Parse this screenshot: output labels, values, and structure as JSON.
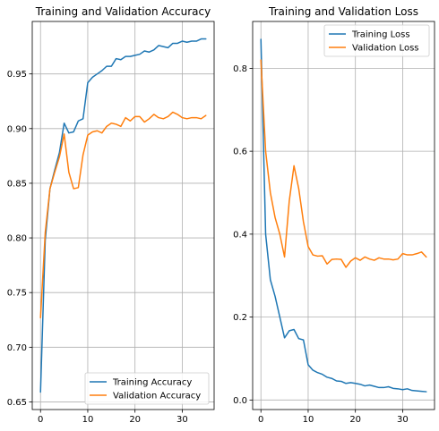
{
  "chart_data": [
    {
      "type": "line",
      "title": "Training and Validation Accuracy",
      "xlabel": "",
      "ylabel": "",
      "xlim": [
        -1.75,
        36.75
      ],
      "ylim": [
        0.643,
        0.998
      ],
      "xticks": [
        0,
        10,
        20,
        30
      ],
      "yticks": [
        0.65,
        0.7,
        0.75,
        0.8,
        0.85,
        0.9,
        0.95
      ],
      "ytick_labels": [
        "0.65",
        "0.70",
        "0.75",
        "0.80",
        "0.85",
        "0.90",
        "0.95"
      ],
      "grid": true,
      "legend_position": "lower-right",
      "x": [
        0,
        1,
        2,
        3,
        4,
        5,
        6,
        7,
        8,
        9,
        10,
        11,
        12,
        13,
        14,
        15,
        16,
        17,
        18,
        19,
        20,
        21,
        22,
        23,
        24,
        25,
        26,
        27,
        28,
        29,
        30,
        31,
        32,
        33,
        34,
        35
      ],
      "series": [
        {
          "name": "Training Accuracy",
          "color": "#1f77b4",
          "values": [
            0.659,
            0.798,
            0.845,
            0.862,
            0.878,
            0.905,
            0.896,
            0.897,
            0.907,
            0.909,
            0.942,
            0.947,
            0.95,
            0.953,
            0.957,
            0.957,
            0.964,
            0.963,
            0.966,
            0.966,
            0.967,
            0.968,
            0.971,
            0.97,
            0.972,
            0.976,
            0.975,
            0.974,
            0.978,
            0.978,
            0.98,
            0.979,
            0.98,
            0.98,
            0.982,
            0.982
          ]
        },
        {
          "name": "Validation Accuracy",
          "color": "#ff7f0e",
          "values": [
            0.727,
            0.805,
            0.845,
            0.86,
            0.874,
            0.895,
            0.86,
            0.845,
            0.846,
            0.876,
            0.894,
            0.897,
            0.898,
            0.896,
            0.902,
            0.905,
            0.904,
            0.902,
            0.91,
            0.907,
            0.911,
            0.911,
            0.906,
            0.909,
            0.913,
            0.91,
            0.909,
            0.911,
            0.915,
            0.913,
            0.91,
            0.909,
            0.91,
            0.91,
            0.909,
            0.912
          ]
        }
      ]
    },
    {
      "type": "line",
      "title": "Training and Validation Loss",
      "xlabel": "",
      "ylabel": "",
      "xlim": [
        -1.75,
        36.75
      ],
      "ylim": [
        -0.023,
        0.913
      ],
      "xticks": [
        0,
        10,
        20,
        30
      ],
      "yticks": [
        0.0,
        0.2,
        0.4,
        0.6,
        0.8
      ],
      "ytick_labels": [
        "0.0",
        "0.2",
        "0.4",
        "0.6",
        "0.8"
      ],
      "grid": true,
      "legend_position": "upper-right",
      "x": [
        0,
        1,
        2,
        3,
        4,
        5,
        6,
        7,
        8,
        9,
        10,
        11,
        12,
        13,
        14,
        15,
        16,
        17,
        18,
        19,
        20,
        21,
        22,
        23,
        24,
        25,
        26,
        27,
        28,
        29,
        30,
        31,
        32,
        33,
        34,
        35
      ],
      "series": [
        {
          "name": "Training Loss",
          "color": "#1f77b4",
          "values": [
            0.87,
            0.4,
            0.29,
            0.25,
            0.2,
            0.15,
            0.167,
            0.17,
            0.148,
            0.145,
            0.085,
            0.072,
            0.066,
            0.062,
            0.055,
            0.052,
            0.046,
            0.045,
            0.04,
            0.042,
            0.04,
            0.038,
            0.034,
            0.036,
            0.033,
            0.03,
            0.03,
            0.032,
            0.028,
            0.027,
            0.025,
            0.027,
            0.023,
            0.022,
            0.021,
            0.02
          ]
        },
        {
          "name": "Validation Loss",
          "color": "#ff7f0e",
          "values": [
            0.82,
            0.6,
            0.5,
            0.44,
            0.4,
            0.345,
            0.48,
            0.565,
            0.51,
            0.43,
            0.37,
            0.35,
            0.347,
            0.348,
            0.328,
            0.339,
            0.34,
            0.339,
            0.32,
            0.335,
            0.343,
            0.337,
            0.345,
            0.34,
            0.337,
            0.343,
            0.34,
            0.34,
            0.338,
            0.34,
            0.353,
            0.35,
            0.35,
            0.353,
            0.357,
            0.345
          ]
        }
      ]
    }
  ]
}
